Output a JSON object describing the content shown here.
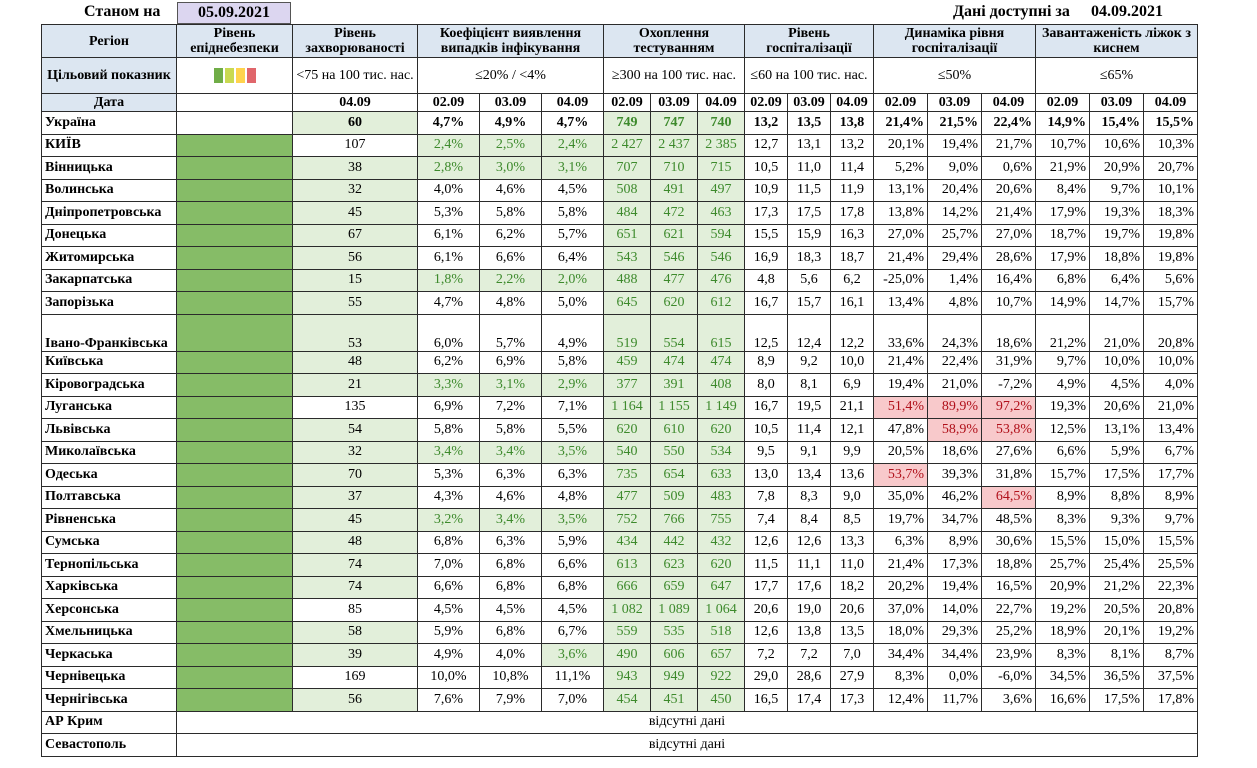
{
  "top": {
    "as_of_label": "Станом на",
    "as_of_date": "05.09.2021",
    "available_label": "Дані доступні за",
    "available_date": "04.09.2021"
  },
  "headers": {
    "region": "Регіон",
    "epidemic_level": "Рівень епіднебезпеки",
    "incidence": "Рівень захворюваності",
    "detection": "Коефіцієнт виявлення випадків інфікування",
    "testing": "Охоплення тестуванням",
    "hospitalization": "Рівень госпіталізації",
    "hosp_dynamics": "Динаміка рівня госпіталізації",
    "oxygen": "Завантаженість ліжок з киснем"
  },
  "targets": {
    "label": "Цільовий показник",
    "incidence": "<75 на 100 тис. нас.",
    "detection": "≤20% / <4%",
    "testing": "≥300 на 100 тис. нас.",
    "hospitalization": "≤60 на 100 тис. нас.",
    "hosp_dynamics": "≤50%",
    "oxygen": "≤65%"
  },
  "level_swatch_colors": [
    "#70ad47",
    "#c9d951",
    "#ffd34d",
    "#e0666b"
  ],
  "dates": {
    "label": "Дата",
    "incidence": "04.09",
    "triple": [
      "02.09",
      "03.09",
      "04.09"
    ]
  },
  "ukraine": {
    "name": "Україна",
    "inc": "60",
    "det": [
      "4,7%",
      "4,9%",
      "4,7%"
    ],
    "test": [
      "749",
      "747",
      "740"
    ],
    "hosp": [
      "13,2",
      "13,5",
      "13,8"
    ],
    "dyn": [
      "21,4%",
      "21,5%",
      "22,4%"
    ],
    "oxy": [
      "14,9%",
      "15,4%",
      "15,5%"
    ]
  },
  "regions": [
    {
      "name": "КИЇВ",
      "inc": "107",
      "det": [
        "2,4%",
        "2,5%",
        "2,4%"
      ],
      "test": [
        "2 427",
        "2 437",
        "2 385"
      ],
      "hosp": [
        "12,7",
        "13,1",
        "13,2"
      ],
      "dyn": [
        "20,1%",
        "19,4%",
        "21,7%"
      ],
      "oxy": [
        "10,7%",
        "10,6%",
        "10,3%"
      ]
    },
    {
      "name": "Вінницька",
      "inc": "38",
      "det": [
        "2,8%",
        "3,0%",
        "3,1%"
      ],
      "test": [
        "707",
        "710",
        "715"
      ],
      "hosp": [
        "10,5",
        "11,0",
        "11,4"
      ],
      "dyn": [
        "5,2%",
        "9,0%",
        "0,6%"
      ],
      "oxy": [
        "21,9%",
        "20,9%",
        "20,7%"
      ]
    },
    {
      "name": "Волинська",
      "inc": "32",
      "det": [
        "4,0%",
        "4,6%",
        "4,5%"
      ],
      "test": [
        "508",
        "491",
        "497"
      ],
      "hosp": [
        "10,9",
        "11,5",
        "11,9"
      ],
      "dyn": [
        "13,1%",
        "20,4%",
        "20,6%"
      ],
      "oxy": [
        "8,4%",
        "9,7%",
        "10,1%"
      ]
    },
    {
      "name": "Дніпропетровська",
      "inc": "45",
      "det": [
        "5,3%",
        "5,8%",
        "5,8%"
      ],
      "test": [
        "484",
        "472",
        "463"
      ],
      "hosp": [
        "17,3",
        "17,5",
        "17,8"
      ],
      "dyn": [
        "13,8%",
        "14,2%",
        "21,4%"
      ],
      "oxy": [
        "17,9%",
        "19,3%",
        "18,3%"
      ]
    },
    {
      "name": "Донецька",
      "inc": "67",
      "det": [
        "6,1%",
        "6,2%",
        "5,7%"
      ],
      "test": [
        "651",
        "621",
        "594"
      ],
      "hosp": [
        "15,5",
        "15,9",
        "16,3"
      ],
      "dyn": [
        "27,0%",
        "25,7%",
        "27,0%"
      ],
      "oxy": [
        "18,7%",
        "19,7%",
        "19,8%"
      ]
    },
    {
      "name": "Житомирська",
      "inc": "56",
      "det": [
        "6,1%",
        "6,6%",
        "6,4%"
      ],
      "test": [
        "543",
        "546",
        "546"
      ],
      "hosp": [
        "16,9",
        "18,3",
        "18,7"
      ],
      "dyn": [
        "21,4%",
        "29,4%",
        "28,6%"
      ],
      "oxy": [
        "17,9%",
        "18,8%",
        "19,8%"
      ]
    },
    {
      "name": "Закарпатська",
      "inc": "15",
      "det": [
        "1,8%",
        "2,2%",
        "2,0%"
      ],
      "test": [
        "488",
        "477",
        "476"
      ],
      "hosp": [
        "4,8",
        "5,6",
        "6,2"
      ],
      "dyn": [
        "-25,0%",
        "1,4%",
        "16,4%"
      ],
      "oxy": [
        "6,8%",
        "6,4%",
        "5,6%"
      ]
    },
    {
      "name": "Запорізька",
      "inc": "55",
      "det": [
        "4,7%",
        "4,8%",
        "5,0%"
      ],
      "test": [
        "645",
        "620",
        "612"
      ],
      "hosp": [
        "16,7",
        "15,7",
        "16,1"
      ],
      "dyn": [
        "13,4%",
        "4,8%",
        "10,7%"
      ],
      "oxy": [
        "14,9%",
        "14,7%",
        "15,7%"
      ]
    },
    {
      "name": "Івано-Франківська",
      "inc": "53",
      "det": [
        "6,0%",
        "5,7%",
        "4,9%"
      ],
      "test": [
        "519",
        "554",
        "615"
      ],
      "hosp": [
        "12,5",
        "12,4",
        "12,2"
      ],
      "dyn": [
        "33,6%",
        "24,3%",
        "18,6%"
      ],
      "oxy": [
        "21,2%",
        "21,0%",
        "20,8%"
      ]
    },
    {
      "name": "Київська",
      "inc": "48",
      "det": [
        "6,2%",
        "6,9%",
        "5,8%"
      ],
      "test": [
        "459",
        "474",
        "474"
      ],
      "hosp": [
        "8,9",
        "9,2",
        "10,0"
      ],
      "dyn": [
        "21,4%",
        "22,4%",
        "31,9%"
      ],
      "oxy": [
        "9,7%",
        "10,0%",
        "10,0%"
      ]
    },
    {
      "name": "Кіровоградська",
      "inc": "21",
      "det": [
        "3,3%",
        "3,1%",
        "2,9%"
      ],
      "test": [
        "377",
        "391",
        "408"
      ],
      "hosp": [
        "8,0",
        "8,1",
        "6,9"
      ],
      "dyn": [
        "19,4%",
        "21,0%",
        "-7,2%"
      ],
      "oxy": [
        "4,9%",
        "4,5%",
        "4,0%"
      ]
    },
    {
      "name": "Луганська",
      "inc": "135",
      "det": [
        "6,9%",
        "7,2%",
        "7,1%"
      ],
      "test": [
        "1 164",
        "1 155",
        "1 149"
      ],
      "hosp": [
        "16,7",
        "19,5",
        "21,1"
      ],
      "dyn": [
        "51,4%",
        "89,9%",
        "97,2%"
      ],
      "oxy": [
        "19,3%",
        "20,6%",
        "21,0%"
      ]
    },
    {
      "name": "Львівська",
      "inc": "54",
      "det": [
        "5,8%",
        "5,8%",
        "5,5%"
      ],
      "test": [
        "620",
        "610",
        "620"
      ],
      "hosp": [
        "10,5",
        "11,4",
        "12,1"
      ],
      "dyn": [
        "47,8%",
        "58,9%",
        "53,8%"
      ],
      "oxy": [
        "12,5%",
        "13,1%",
        "13,4%"
      ]
    },
    {
      "name": "Миколаївська",
      "inc": "32",
      "det": [
        "3,4%",
        "3,4%",
        "3,5%"
      ],
      "test": [
        "540",
        "550",
        "534"
      ],
      "hosp": [
        "9,5",
        "9,1",
        "9,9"
      ],
      "dyn": [
        "20,5%",
        "18,6%",
        "27,6%"
      ],
      "oxy": [
        "6,6%",
        "5,9%",
        "6,7%"
      ]
    },
    {
      "name": "Одеська",
      "inc": "70",
      "det": [
        "5,3%",
        "6,3%",
        "6,3%"
      ],
      "test": [
        "735",
        "654",
        "633"
      ],
      "hosp": [
        "13,0",
        "13,4",
        "13,6"
      ],
      "dyn": [
        "53,7%",
        "39,3%",
        "31,8%"
      ],
      "oxy": [
        "15,7%",
        "17,5%",
        "17,7%"
      ]
    },
    {
      "name": "Полтавська",
      "inc": "37",
      "det": [
        "4,3%",
        "4,6%",
        "4,8%"
      ],
      "test": [
        "477",
        "509",
        "483"
      ],
      "hosp": [
        "7,8",
        "8,3",
        "9,0"
      ],
      "dyn": [
        "35,0%",
        "46,2%",
        "64,5%"
      ],
      "oxy": [
        "8,9%",
        "8,8%",
        "8,9%"
      ]
    },
    {
      "name": "Рівненська",
      "inc": "45",
      "det": [
        "3,2%",
        "3,4%",
        "3,5%"
      ],
      "test": [
        "752",
        "766",
        "755"
      ],
      "hosp": [
        "7,4",
        "8,4",
        "8,5"
      ],
      "dyn": [
        "19,7%",
        "34,7%",
        "48,5%"
      ],
      "oxy": [
        "8,3%",
        "9,3%",
        "9,7%"
      ]
    },
    {
      "name": "Сумська",
      "inc": "48",
      "det": [
        "6,8%",
        "6,3%",
        "5,9%"
      ],
      "test": [
        "434",
        "442",
        "432"
      ],
      "hosp": [
        "12,6",
        "12,6",
        "13,3"
      ],
      "dyn": [
        "6,3%",
        "8,9%",
        "30,6%"
      ],
      "oxy": [
        "15,5%",
        "15,0%",
        "15,5%"
      ]
    },
    {
      "name": "Тернопільська",
      "inc": "74",
      "det": [
        "7,0%",
        "6,8%",
        "6,6%"
      ],
      "test": [
        "613",
        "623",
        "620"
      ],
      "hosp": [
        "11,5",
        "11,1",
        "11,0"
      ],
      "dyn": [
        "21,4%",
        "17,3%",
        "18,8%"
      ],
      "oxy": [
        "25,7%",
        "25,4%",
        "25,5%"
      ]
    },
    {
      "name": "Харківська",
      "inc": "74",
      "det": [
        "6,6%",
        "6,8%",
        "6,8%"
      ],
      "test": [
        "666",
        "659",
        "647"
      ],
      "hosp": [
        "17,7",
        "17,6",
        "18,2"
      ],
      "dyn": [
        "20,2%",
        "19,4%",
        "16,5%"
      ],
      "oxy": [
        "20,9%",
        "21,2%",
        "22,3%"
      ]
    },
    {
      "name": "Херсонська",
      "inc": "85",
      "det": [
        "4,5%",
        "4,5%",
        "4,5%"
      ],
      "test": [
        "1 082",
        "1 089",
        "1 064"
      ],
      "hosp": [
        "20,6",
        "19,0",
        "20,6"
      ],
      "dyn": [
        "37,0%",
        "14,0%",
        "22,7%"
      ],
      "oxy": [
        "19,2%",
        "20,5%",
        "20,8%"
      ]
    },
    {
      "name": "Хмельницька",
      "inc": "58",
      "det": [
        "5,9%",
        "6,8%",
        "6,7%"
      ],
      "test": [
        "559",
        "535",
        "518"
      ],
      "hosp": [
        "12,6",
        "13,8",
        "13,5"
      ],
      "dyn": [
        "18,0%",
        "29,3%",
        "25,2%"
      ],
      "oxy": [
        "18,9%",
        "20,1%",
        "19,2%"
      ]
    },
    {
      "name": "Черкаська",
      "inc": "39",
      "det": [
        "4,9%",
        "4,0%",
        "3,6%"
      ],
      "test": [
        "490",
        "606",
        "657"
      ],
      "hosp": [
        "7,2",
        "7,2",
        "7,0"
      ],
      "dyn": [
        "34,4%",
        "34,4%",
        "23,9%"
      ],
      "oxy": [
        "8,3%",
        "8,1%",
        "8,7%"
      ]
    },
    {
      "name": "Чернівецька",
      "inc": "169",
      "det": [
        "10,0%",
        "10,8%",
        "11,1%"
      ],
      "test": [
        "943",
        "949",
        "922"
      ],
      "hosp": [
        "29,0",
        "28,6",
        "27,9"
      ],
      "dyn": [
        "8,3%",
        "0,0%",
        "-6,0%"
      ],
      "oxy": [
        "34,5%",
        "36,5%",
        "37,5%"
      ]
    },
    {
      "name": "Чернігівська",
      "inc": "56",
      "det": [
        "7,6%",
        "7,9%",
        "7,0%"
      ],
      "test": [
        "454",
        "451",
        "450"
      ],
      "hosp": [
        "16,5",
        "17,4",
        "17,3"
      ],
      "dyn": [
        "12,4%",
        "11,7%",
        "3,6%"
      ],
      "oxy": [
        "16,6%",
        "17,5%",
        "17,8%"
      ]
    }
  ],
  "missing": [
    {
      "name": "АР Крим",
      "text": "відсутні дані"
    },
    {
      "name": "Севастополь",
      "text": "відсутні дані"
    }
  ]
}
